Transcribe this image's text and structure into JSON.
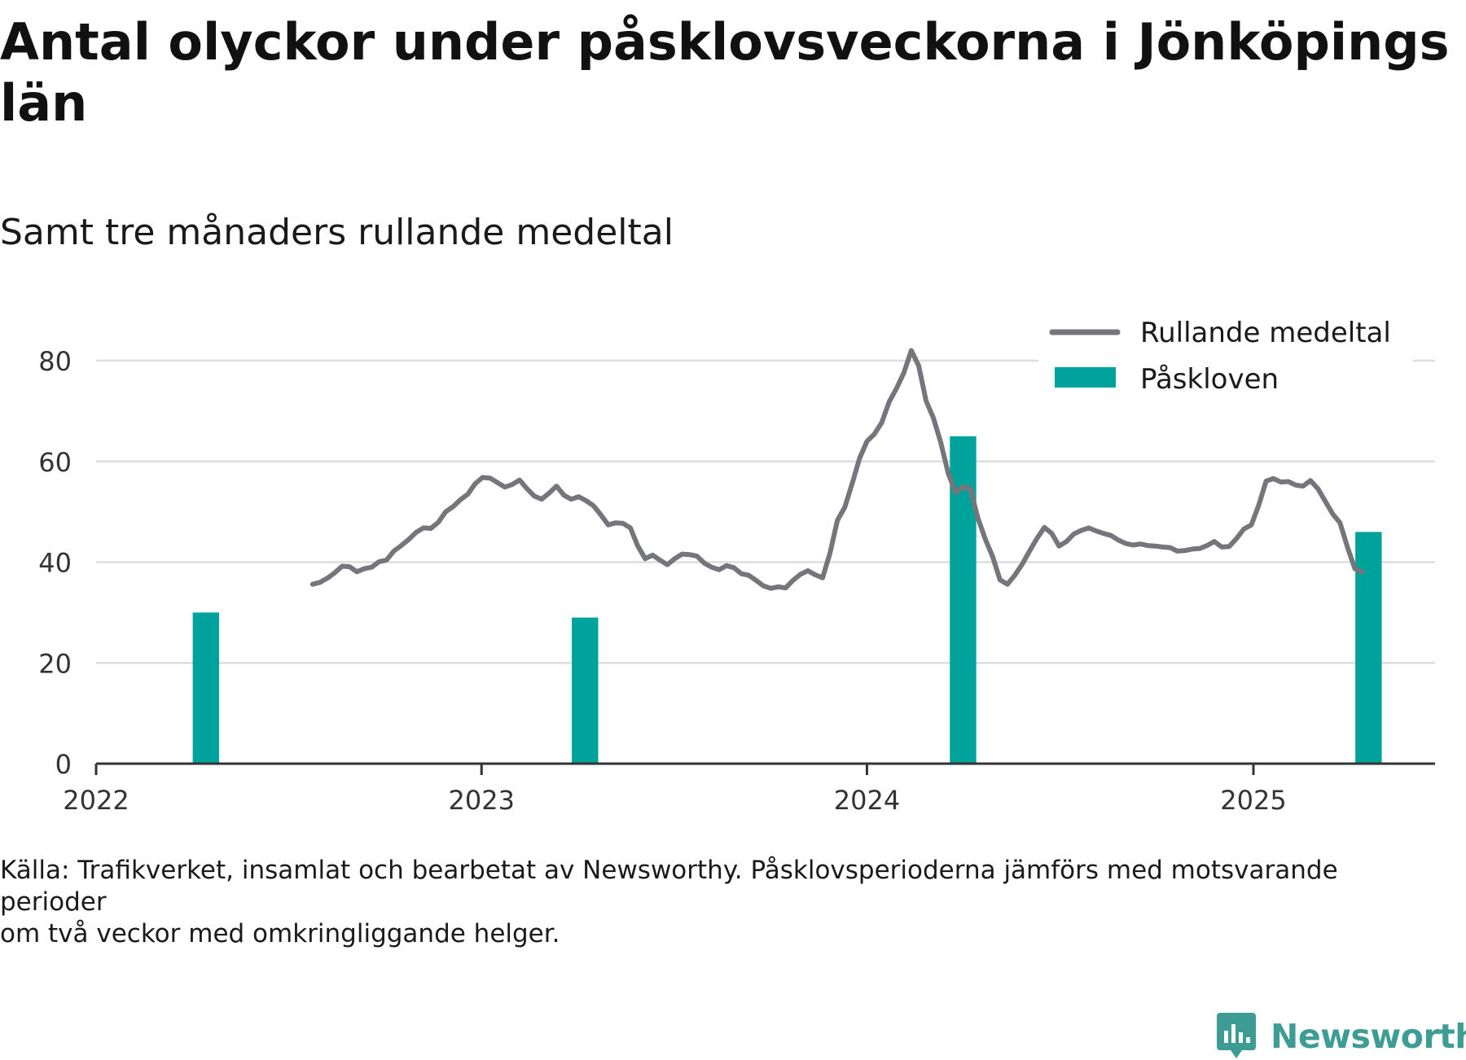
{
  "header": {
    "title": "Antal olyckor under påsklovsveckorna i Jönköpings län",
    "subtitle": "Samt tre månaders rullande medeltal"
  },
  "footer": {
    "source_line1": "Källa: Trafikverket, insamlat och bearbetat av Newsworthy. Påsklovsperioderna jämförs med motsvarande perioder",
    "source_line2": "om två veckor med omkringliggande helger.",
    "brand": "Newsworthy"
  },
  "colors": {
    "line": "#75757c",
    "bar": "#00a39b",
    "grid": "#dddddd",
    "axis": "#333333",
    "brand": "#3d9c94"
  },
  "chart_data": {
    "type": "bar+line",
    "title": "Antal olyckor under påsklovsveckorna i Jönköpings län",
    "subtitle": "Samt tre månaders rullande medeltal",
    "x_type": "date",
    "xlim": [
      "2022-01-01",
      "2025-06-22"
    ],
    "ylim": [
      0,
      80
    ],
    "yticks": [
      0,
      20,
      40,
      60,
      80
    ],
    "xticks": [
      {
        "date": "2022-01-01",
        "label": "2022"
      },
      {
        "date": "2023-01-01",
        "label": "2023"
      },
      {
        "date": "2024-01-01",
        "label": "2024"
      },
      {
        "date": "2025-01-01",
        "label": "2025"
      }
    ],
    "grid": true,
    "legend_position": "top-right",
    "bars": {
      "name": "Påskloven",
      "bar_days": 25,
      "points": [
        {
          "x": "2022-04-15",
          "y": 30
        },
        {
          "x": "2023-04-09",
          "y": 29
        },
        {
          "x": "2024-04-01",
          "y": 65
        },
        {
          "x": "2025-04-20",
          "y": 46
        }
      ]
    },
    "line": {
      "name": "Rullande medeltal",
      "points": [
        [
          "2022-07-25",
          35.6
        ],
        [
          "2022-08-01",
          36.0
        ],
        [
          "2022-08-08",
          36.8
        ],
        [
          "2022-08-15",
          37.9
        ],
        [
          "2022-08-22",
          39.2
        ],
        [
          "2022-08-29",
          39.1
        ],
        [
          "2022-09-05",
          38.1
        ],
        [
          "2022-09-12",
          38.7
        ],
        [
          "2022-09-19",
          39.0
        ],
        [
          "2022-09-26",
          40.1
        ],
        [
          "2022-10-03",
          40.4
        ],
        [
          "2022-10-10",
          42.2
        ],
        [
          "2022-10-17",
          43.3
        ],
        [
          "2022-10-24",
          44.5
        ],
        [
          "2022-10-31",
          45.9
        ],
        [
          "2022-11-07",
          46.8
        ],
        [
          "2022-11-14",
          46.7
        ],
        [
          "2022-11-21",
          47.9
        ],
        [
          "2022-11-28",
          50.0
        ],
        [
          "2022-12-05",
          51.0
        ],
        [
          "2022-12-12",
          52.4
        ],
        [
          "2022-12-19",
          53.5
        ],
        [
          "2022-12-26",
          55.6
        ],
        [
          "2023-01-02",
          56.8
        ],
        [
          "2023-01-09",
          56.7
        ],
        [
          "2023-01-16",
          55.8
        ],
        [
          "2023-01-23",
          54.9
        ],
        [
          "2023-01-30",
          55.4
        ],
        [
          "2023-02-06",
          56.3
        ],
        [
          "2023-02-13",
          54.6
        ],
        [
          "2023-02-20",
          53.1
        ],
        [
          "2023-02-27",
          52.5
        ],
        [
          "2023-03-06",
          53.7
        ],
        [
          "2023-03-13",
          55.1
        ],
        [
          "2023-03-20",
          53.3
        ],
        [
          "2023-03-27",
          52.5
        ],
        [
          "2023-04-03",
          53.0
        ],
        [
          "2023-04-10",
          52.2
        ],
        [
          "2023-04-17",
          51.2
        ],
        [
          "2023-04-24",
          49.4
        ],
        [
          "2023-05-01",
          47.4
        ],
        [
          "2023-05-08",
          47.8
        ],
        [
          "2023-05-15",
          47.7
        ],
        [
          "2023-05-22",
          46.8
        ],
        [
          "2023-05-29",
          43.2
        ],
        [
          "2023-06-05",
          40.7
        ],
        [
          "2023-06-12",
          41.4
        ],
        [
          "2023-06-19",
          40.4
        ],
        [
          "2023-06-26",
          39.5
        ],
        [
          "2023-07-03",
          40.7
        ],
        [
          "2023-07-10",
          41.6
        ],
        [
          "2023-07-17",
          41.5
        ],
        [
          "2023-07-24",
          41.2
        ],
        [
          "2023-07-31",
          39.8
        ],
        [
          "2023-08-07",
          39.0
        ],
        [
          "2023-08-14",
          38.5
        ],
        [
          "2023-08-21",
          39.3
        ],
        [
          "2023-08-28",
          38.9
        ],
        [
          "2023-09-04",
          37.7
        ],
        [
          "2023-09-11",
          37.4
        ],
        [
          "2023-09-18",
          36.4
        ],
        [
          "2023-09-25",
          35.3
        ],
        [
          "2023-10-02",
          34.8
        ],
        [
          "2023-10-09",
          35.1
        ],
        [
          "2023-10-16",
          34.9
        ],
        [
          "2023-10-23",
          36.4
        ],
        [
          "2023-10-30",
          37.6
        ],
        [
          "2023-11-06",
          38.3
        ],
        [
          "2023-11-13",
          37.5
        ],
        [
          "2023-11-20",
          36.9
        ],
        [
          "2023-11-27",
          41.8
        ],
        [
          "2023-12-04",
          48.3
        ],
        [
          "2023-12-11",
          50.9
        ],
        [
          "2023-12-18",
          55.6
        ],
        [
          "2023-12-25",
          60.6
        ],
        [
          "2024-01-01",
          64.0
        ],
        [
          "2024-01-08",
          65.4
        ],
        [
          "2024-01-15",
          67.7
        ],
        [
          "2024-01-22",
          71.8
        ],
        [
          "2024-01-29",
          74.5
        ],
        [
          "2024-02-05",
          77.6
        ],
        [
          "2024-02-12",
          82.0
        ],
        [
          "2024-02-19",
          79.0
        ],
        [
          "2024-02-26",
          72.0
        ],
        [
          "2024-03-04",
          68.6
        ],
        [
          "2024-03-11",
          63.7
        ],
        [
          "2024-03-18",
          57.6
        ],
        [
          "2024-03-25",
          53.8
        ],
        [
          "2024-04-01",
          55.0
        ],
        [
          "2024-04-08",
          54.5
        ],
        [
          "2024-04-15",
          48.8
        ],
        [
          "2024-04-22",
          44.6
        ],
        [
          "2024-04-29",
          41.1
        ],
        [
          "2024-05-06",
          36.5
        ],
        [
          "2024-05-13",
          35.6
        ],
        [
          "2024-05-20",
          37.4
        ],
        [
          "2024-05-27",
          39.6
        ],
        [
          "2024-06-03",
          42.2
        ],
        [
          "2024-06-10",
          44.7
        ],
        [
          "2024-06-17",
          46.9
        ],
        [
          "2024-06-24",
          45.7
        ],
        [
          "2024-07-01",
          43.2
        ],
        [
          "2024-07-08",
          44.1
        ],
        [
          "2024-07-15",
          45.6
        ],
        [
          "2024-07-22",
          46.3
        ],
        [
          "2024-07-29",
          46.8
        ],
        [
          "2024-08-05",
          46.2
        ],
        [
          "2024-08-12",
          45.7
        ],
        [
          "2024-08-19",
          45.3
        ],
        [
          "2024-08-26",
          44.4
        ],
        [
          "2024-09-02",
          43.7
        ],
        [
          "2024-09-09",
          43.4
        ],
        [
          "2024-09-16",
          43.6
        ],
        [
          "2024-09-23",
          43.3
        ],
        [
          "2024-09-30",
          43.2
        ],
        [
          "2024-10-07",
          43.0
        ],
        [
          "2024-10-14",
          42.9
        ],
        [
          "2024-10-21",
          42.2
        ],
        [
          "2024-10-28",
          42.3
        ],
        [
          "2024-11-04",
          42.6
        ],
        [
          "2024-11-11",
          42.7
        ],
        [
          "2024-11-18",
          43.3
        ],
        [
          "2024-11-25",
          44.1
        ],
        [
          "2024-12-02",
          43.0
        ],
        [
          "2024-12-09",
          43.1
        ],
        [
          "2024-12-16",
          44.7
        ],
        [
          "2024-12-23",
          46.6
        ],
        [
          "2024-12-30",
          47.4
        ],
        [
          "2025-01-06",
          51.3
        ],
        [
          "2025-01-13",
          56.1
        ],
        [
          "2025-01-20",
          56.6
        ],
        [
          "2025-01-27",
          55.9
        ],
        [
          "2025-02-03",
          56.0
        ],
        [
          "2025-02-10",
          55.3
        ],
        [
          "2025-02-17",
          55.1
        ],
        [
          "2025-02-24",
          56.2
        ],
        [
          "2025-03-03",
          54.6
        ],
        [
          "2025-03-10",
          52.1
        ],
        [
          "2025-03-17",
          49.6
        ],
        [
          "2025-03-24",
          47.8
        ],
        [
          "2025-03-31",
          43.0
        ],
        [
          "2025-04-07",
          38.7
        ],
        [
          "2025-04-14",
          38.0
        ]
      ]
    },
    "legend": [
      {
        "label": "Rullande medeltal",
        "kind": "line"
      },
      {
        "label": "Påskloven",
        "kind": "bar"
      }
    ]
  }
}
